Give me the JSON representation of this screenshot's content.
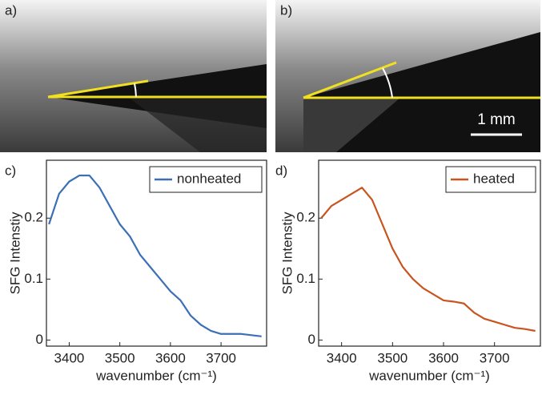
{
  "panels": [
    {
      "label": "a)"
    },
    {
      "label": "b)",
      "scale_bar": "1 mm"
    }
  ],
  "chart_data": [
    {
      "type": "line",
      "label": "c)",
      "x_label": "wavenumber (cm⁻¹)",
      "y_label": "SFG Intenstiy",
      "x": [
        3360,
        3380,
        3400,
        3420,
        3440,
        3460,
        3480,
        3500,
        3520,
        3540,
        3560,
        3580,
        3600,
        3620,
        3640,
        3660,
        3680,
        3700,
        3720,
        3740,
        3760,
        3780
      ],
      "series": [
        {
          "name": "nonheated",
          "color": "#3b6fb6",
          "values": [
            0.19,
            0.24,
            0.26,
            0.27,
            0.27,
            0.25,
            0.22,
            0.19,
            0.17,
            0.14,
            0.12,
            0.1,
            0.08,
            0.065,
            0.04,
            0.025,
            0.015,
            0.01,
            0.01,
            0.01,
            0.008,
            0.006
          ]
        }
      ],
      "xlim": [
        3355,
        3790
      ],
      "ylim": [
        -0.01,
        0.295
      ],
      "xticks": [
        3400,
        3500,
        3600,
        3700
      ],
      "yticks": [
        0,
        0.1,
        0.2
      ],
      "legend": "top-right"
    },
    {
      "type": "line",
      "label": "d)",
      "x_label": "wavenumber (cm⁻¹)",
      "y_label": "SFG Intenstiy",
      "x": [
        3360,
        3380,
        3400,
        3420,
        3440,
        3460,
        3480,
        3500,
        3520,
        3540,
        3560,
        3580,
        3600,
        3620,
        3640,
        3660,
        3680,
        3700,
        3720,
        3740,
        3760,
        3780
      ],
      "series": [
        {
          "name": "heated",
          "color": "#c8541f",
          "values": [
            0.2,
            0.22,
            0.23,
            0.24,
            0.25,
            0.23,
            0.19,
            0.15,
            0.12,
            0.1,
            0.085,
            0.075,
            0.065,
            0.063,
            0.06,
            0.045,
            0.035,
            0.03,
            0.025,
            0.02,
            0.018,
            0.015
          ]
        }
      ],
      "xlim": [
        3355,
        3790
      ],
      "ylim": [
        -0.01,
        0.295
      ],
      "xticks": [
        3400,
        3500,
        3600,
        3700
      ],
      "yticks": [
        0,
        0.1,
        0.2
      ],
      "legend": "top-right"
    }
  ]
}
